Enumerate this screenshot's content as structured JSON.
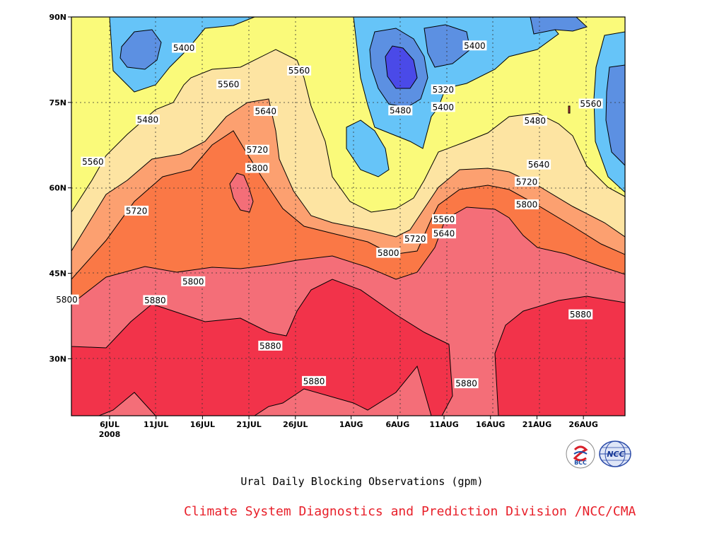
{
  "chart_data": {
    "type": "contour",
    "caption": "Ural Daily Blocking Observations (gpm)",
    "xlabel": "",
    "ylabel": "",
    "x_ticks": [
      "6JUL",
      "11JUL",
      "16JUL",
      "21JUL",
      "26JUL",
      "1AUG",
      "6AUG",
      "11AUG",
      "16AUG",
      "21AUG",
      "26AUG"
    ],
    "x_year_label": "2008",
    "y_ticks": [
      "30N",
      "45N",
      "60N",
      "75N",
      "90N"
    ],
    "ylim_deg": [
      20,
      90
    ],
    "levels": [
      5320,
      5400,
      5480,
      5560,
      5640,
      5720,
      5800,
      5880
    ],
    "level_colors": {
      "lt5320": "#4a4ae8",
      "5320": "#5c90e2",
      "5400": "#66c4f8",
      "5480": "#fafa7a",
      "5560": "#fde4a2",
      "5640": "#fca070",
      "5720": "#fa7846",
      "5800": "#f46e78",
      "5880": "#f2334a"
    },
    "contour_labels": [
      {
        "text": "5400",
        "day": 8.0,
        "lat": 84.6
      },
      {
        "text": "5560",
        "day": 12.8,
        "lat": 78.2
      },
      {
        "text": "5480",
        "day": 4.1,
        "lat": 72.0
      },
      {
        "text": "5560",
        "day": 20.4,
        "lat": 80.6
      },
      {
        "text": "5640",
        "day": 16.8,
        "lat": 73.5
      },
      {
        "text": "5560",
        "day": -1.8,
        "lat": 64.6
      },
      {
        "text": "5720",
        "day": 15.9,
        "lat": 66.7
      },
      {
        "text": "5800",
        "day": 15.9,
        "lat": 63.5
      },
      {
        "text": "5720",
        "day": 2.9,
        "lat": 56.0
      },
      {
        "text": "5800",
        "day": 30.0,
        "lat": 48.6
      },
      {
        "text": "5720",
        "day": 32.9,
        "lat": 51.1
      },
      {
        "text": "5640",
        "day": 36.0,
        "lat": 52.0
      },
      {
        "text": "5560",
        "day": 36.0,
        "lat": 54.5
      },
      {
        "text": "5800",
        "day": 9.0,
        "lat": 43.6
      },
      {
        "text": "5800",
        "day": -4.6,
        "lat": 40.4
      },
      {
        "text": "5880",
        "day": 4.9,
        "lat": 40.3
      },
      {
        "text": "5880",
        "day": 17.3,
        "lat": 32.3
      },
      {
        "text": "5880",
        "day": 22.0,
        "lat": 26.1
      },
      {
        "text": "5880",
        "day": 38.4,
        "lat": 25.7
      },
      {
        "text": "5480",
        "day": 31.3,
        "lat": 73.6
      },
      {
        "text": "5320",
        "day": 35.9,
        "lat": 77.3
      },
      {
        "text": "5400",
        "day": 35.9,
        "lat": 74.2
      },
      {
        "text": "5400",
        "day": 39.3,
        "lat": 85.0
      },
      {
        "text": "5480",
        "day": 45.8,
        "lat": 71.8
      },
      {
        "text": "5560",
        "day": 51.8,
        "lat": 74.8
      },
      {
        "text": "5640",
        "day": 46.2,
        "lat": 64.1
      },
      {
        "text": "5720",
        "day": 44.9,
        "lat": 61.1
      },
      {
        "text": "5800",
        "day": 44.9,
        "lat": 57.1
      },
      {
        "text": "5880",
        "day": 50.7,
        "lat": 37.8
      }
    ]
  },
  "credit": "Climate System Diagnostics and Prediction Division /NCC/CMA",
  "logos": [
    {
      "icon": "bcc-logo-icon",
      "text": "BCC"
    },
    {
      "icon": "ncc-logo-icon",
      "text": "NCC"
    }
  ]
}
